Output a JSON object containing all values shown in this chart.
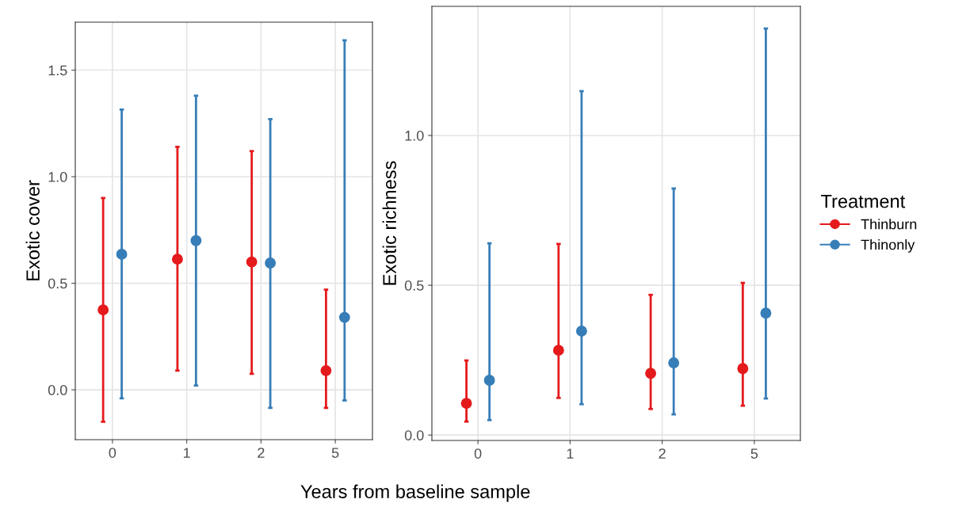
{
  "chart_data": [
    {
      "type": "scatter",
      "ylabel": "Exotic cover",
      "xlabel": "Years from baseline sample",
      "categories": [
        "0",
        "1",
        "2",
        "5"
      ],
      "ylim": [
        -0.234,
        1.725
      ],
      "yticks": [
        {
          "value": 0,
          "label": "0.0"
        },
        {
          "value": 0.5,
          "label": "0.5"
        },
        {
          "value": 1,
          "label": "1.0"
        },
        {
          "value": 1.5,
          "label": "1.5"
        }
      ],
      "grid": true,
      "marker": "circle",
      "series": [
        {
          "color": "#e41a1c",
          "values": [
            0.375,
            0.613,
            0.6,
            0.09
          ],
          "errors": [
            [
              -0.15,
              0.9
            ],
            [
              0.09,
              1.14
            ],
            [
              0.075,
              1.12
            ],
            [
              -0.085,
              0.47
            ]
          ]
        },
        {
          "color": "#377eb8",
          "values": [
            0.636,
            0.7,
            0.595,
            0.34
          ],
          "errors": [
            [
              -0.04,
              1.315
            ],
            [
              0.02,
              1.38
            ],
            [
              -0.085,
              1.27
            ],
            [
              -0.05,
              1.64
            ]
          ]
        }
      ]
    },
    {
      "type": "scatter",
      "ylabel": "Exotic richness",
      "legend_title": "Treatment",
      "categories": [
        "0",
        "1",
        "2",
        "5"
      ],
      "ylim": [
        -0.018,
        1.431
      ],
      "yticks": [
        {
          "value": 0,
          "label": "0.0"
        },
        {
          "value": 0.5,
          "label": "0.5"
        },
        {
          "value": 1,
          "label": "1.0"
        }
      ],
      "grid": true,
      "marker": "circle",
      "legend": "right",
      "series": [
        {
          "name": "Thinburn",
          "color": "#e41a1c",
          "values": [
            0.106,
            0.283,
            0.206,
            0.222
          ],
          "errors": [
            [
              0.045,
              0.249
            ],
            [
              0.124,
              0.638
            ],
            [
              0.087,
              0.468
            ],
            [
              0.098,
              0.508
            ]
          ]
        },
        {
          "name": "Thinonly",
          "color": "#377eb8",
          "values": [
            0.183,
            0.347,
            0.241,
            0.407
          ],
          "errors": [
            [
              0.05,
              0.64
            ],
            [
              0.103,
              1.148
            ],
            [
              0.069,
              0.823
            ],
            [
              0.122,
              1.357
            ]
          ]
        }
      ]
    }
  ]
}
